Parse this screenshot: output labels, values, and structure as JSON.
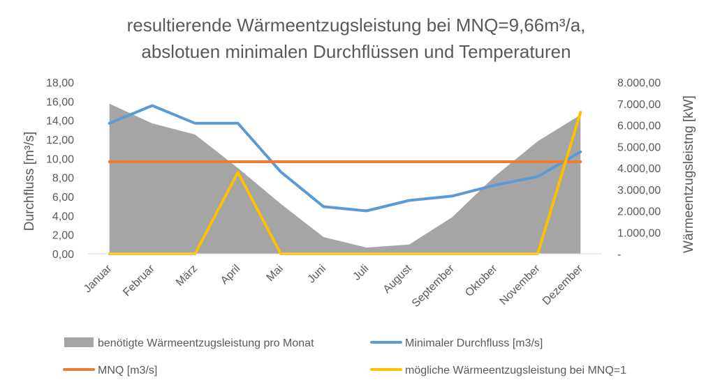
{
  "chart_data": {
    "type": "line",
    "title_lines": [
      "resultierende Wärmeentzugsleistung bei MNQ=9,66m³/a,",
      "abslotuen minimalen Durchflüssen und Temperaturen"
    ],
    "categories": [
      "Januar",
      "Februar",
      "März",
      "April",
      "Mai",
      "Juni",
      "Juli",
      "August",
      "September",
      "Oktober",
      "November",
      "Dezember"
    ],
    "ylabel_left": "Durchfluss [m³/s]",
    "ylabel_right": "Wärmeentzugsleistng [kW]",
    "y_left_range": [
      0,
      18
    ],
    "y_right_range": [
      0,
      8000
    ],
    "y_left_ticks": [
      "0,00",
      "2,00",
      "4,00",
      "6,00",
      "8,00",
      "10,00",
      "12,00",
      "14,00",
      "16,00",
      "18,00"
    ],
    "y_right_ticks": [
      "-",
      "1.000,00",
      "2.000,00",
      "3.000,00",
      "4.000,00",
      "5.000,00",
      "6.000,00",
      "7.000,00",
      "8.000,00"
    ],
    "grid": false,
    "legend_position": "bottom",
    "series": [
      {
        "name": "benötigte Wärmeentzugsleistung pro Monat",
        "type": "area",
        "axis": "right",
        "color": "#a5a5a5",
        "values": [
          7000,
          6080,
          5560,
          4000,
          2330,
          780,
          290,
          430,
          1700,
          3620,
          5250,
          6480
        ]
      },
      {
        "name": "Minimaler Durchfluss [m3/s]",
        "type": "line",
        "axis": "left",
        "color": "#5b9bd5",
        "values": [
          13.7,
          15.55,
          13.7,
          13.7,
          8.6,
          4.95,
          4.5,
          5.6,
          6.05,
          7.2,
          8.1,
          10.7
        ]
      },
      {
        "name": "MNQ [m3/s]",
        "type": "line",
        "axis": "left",
        "color": "#ed7d31",
        "values": [
          9.66,
          9.66,
          9.66,
          9.66,
          9.66,
          9.66,
          9.66,
          9.66,
          9.66,
          9.66,
          9.66,
          9.66
        ]
      },
      {
        "name": "mögliche Wärmeentzugsleistung bei MNQ=1",
        "type": "line",
        "axis": "right",
        "color": "#ffc000",
        "values": [
          0,
          0,
          0,
          3800,
          0,
          0,
          0,
          0,
          0,
          0,
          0,
          6600
        ]
      }
    ]
  }
}
